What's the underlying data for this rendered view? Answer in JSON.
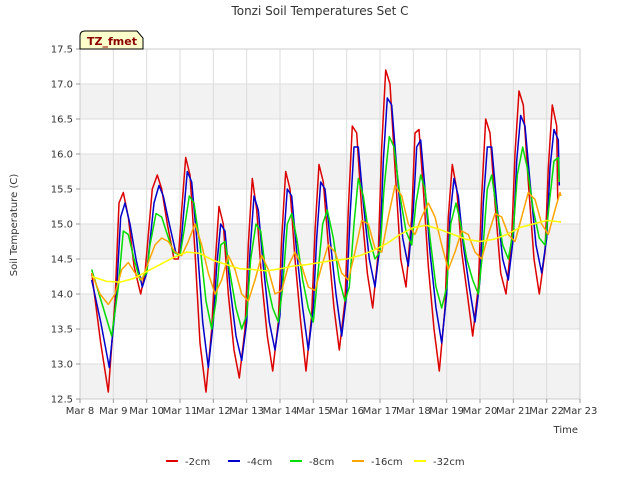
{
  "chart_data": {
    "type": "line",
    "title": "Tonzi Soil Temperatures Set C",
    "xlabel": "Time",
    "ylabel": "Soil Temperature (C)",
    "site_label": "TZ_fmet",
    "xlim": [
      8,
      23
    ],
    "ylim": [
      12.5,
      17.5
    ],
    "x_ticks": [
      8,
      9,
      10,
      11,
      12,
      13,
      14,
      15,
      16,
      17,
      18,
      19,
      20,
      21,
      22,
      23
    ],
    "x_tick_labels": [
      "Mar 8",
      "Mar 9",
      "Mar 10",
      "Mar 11",
      "Mar 12",
      "Mar 13",
      "Mar 14",
      "Mar 15",
      "Mar 16",
      "Mar 17",
      "Mar 18",
      "Mar 19",
      "Mar 20",
      "Mar 21",
      "Mar 22",
      "Mar 23"
    ],
    "y_ticks": [
      12.5,
      13.0,
      13.5,
      14.0,
      14.5,
      15.0,
      15.5,
      16.0,
      16.5,
      17.0,
      17.5
    ],
    "y_tick_labels": [
      "12.5",
      "13.0",
      "13.5",
      "14.0",
      "14.5",
      "15.0",
      "15.5",
      "16.0",
      "16.5",
      "17.0",
      "17.5"
    ],
    "grid": true,
    "legend_position": "bottom",
    "series": [
      {
        "name": "-2cm",
        "color": "#dd0000",
        "x": [
          8.35,
          8.62,
          8.85,
          9.05,
          9.17,
          9.3,
          9.45,
          9.62,
          9.82,
          9.95,
          10.17,
          10.32,
          10.45,
          10.62,
          10.82,
          10.95,
          11.05,
          11.17,
          11.3,
          11.45,
          11.6,
          11.78,
          11.95,
          12.05,
          12.17,
          12.3,
          12.45,
          12.62,
          12.78,
          12.95,
          13.05,
          13.17,
          13.3,
          13.45,
          13.62,
          13.78,
          13.95,
          14.05,
          14.17,
          14.3,
          14.45,
          14.62,
          14.78,
          14.95,
          15.05,
          15.17,
          15.3,
          15.45,
          15.62,
          15.78,
          15.95,
          16.05,
          16.17,
          16.3,
          16.45,
          16.62,
          16.78,
          16.95,
          17.05,
          17.17,
          17.3,
          17.45,
          17.62,
          17.78,
          17.95,
          18.05,
          18.17,
          18.3,
          18.45,
          18.62,
          18.78,
          18.95,
          19.05,
          19.17,
          19.3,
          19.45,
          19.62,
          19.78,
          19.95,
          20.05,
          20.17,
          20.3,
          20.45,
          20.62,
          20.78,
          20.95,
          21.05,
          21.17,
          21.3,
          21.45,
          21.62,
          21.78,
          21.95,
          22.05,
          22.17,
          22.3
        ],
        "y": [
          14.3,
          13.3,
          12.6,
          13.9,
          15.3,
          15.45,
          15.1,
          14.4,
          14.0,
          14.3,
          15.5,
          15.7,
          15.5,
          15.0,
          14.5,
          14.5,
          15.2,
          15.95,
          15.7,
          14.6,
          13.3,
          12.6,
          13.5,
          14.4,
          15.25,
          15.0,
          14.0,
          13.2,
          12.8,
          13.5,
          14.7,
          15.65,
          15.2,
          14.2,
          13.4,
          12.9,
          13.6,
          14.8,
          15.75,
          15.5,
          14.5,
          13.6,
          12.9,
          13.7,
          14.9,
          15.85,
          15.6,
          14.7,
          13.8,
          13.2,
          13.9,
          15.2,
          16.4,
          16.3,
          15.2,
          14.3,
          13.8,
          14.6,
          16.1,
          17.2,
          17.0,
          15.8,
          14.5,
          14.1,
          15.1,
          16.3,
          16.35,
          15.5,
          14.4,
          13.5,
          12.9,
          13.8,
          15.1,
          15.85,
          15.5,
          14.6,
          14.0,
          13.4,
          14.1,
          15.4,
          16.5,
          16.3,
          15.3,
          14.3,
          14.0,
          14.8,
          16.0,
          16.9,
          16.7,
          15.6,
          14.5,
          14.0,
          14.6,
          15.8,
          16.7,
          16.4
        ],
        "y_end": 15.35
      },
      {
        "name": "-4cm",
        "color": "#0000cc",
        "x": [
          8.35,
          8.62,
          8.88,
          9.08,
          9.22,
          9.35,
          9.5,
          9.68,
          9.87,
          10.0,
          10.22,
          10.37,
          10.5,
          10.68,
          10.87,
          11.0,
          11.1,
          11.22,
          11.35,
          11.5,
          11.68,
          11.85,
          12.0,
          12.1,
          12.22,
          12.35,
          12.5,
          12.68,
          12.85,
          13.0,
          13.1,
          13.22,
          13.35,
          13.5,
          13.68,
          13.85,
          14.0,
          14.1,
          14.22,
          14.35,
          14.5,
          14.68,
          14.85,
          15.0,
          15.1,
          15.22,
          15.35,
          15.5,
          15.68,
          15.85,
          16.0,
          16.1,
          16.22,
          16.35,
          16.5,
          16.68,
          16.85,
          17.0,
          17.1,
          17.22,
          17.35,
          17.5,
          17.68,
          17.85,
          18.0,
          18.1,
          18.22,
          18.35,
          18.5,
          18.68,
          18.85,
          19.0,
          19.1,
          19.22,
          19.35,
          19.5,
          19.68,
          19.85,
          20.0,
          20.1,
          20.22,
          20.35,
          20.5,
          20.68,
          20.85,
          21.0,
          21.1,
          21.22,
          21.35,
          21.5,
          21.68,
          21.85,
          22.0,
          22.1,
          22.22,
          22.35
        ],
        "y": [
          14.2,
          13.6,
          12.95,
          13.9,
          15.1,
          15.3,
          15.0,
          14.5,
          14.1,
          14.3,
          15.3,
          15.55,
          15.4,
          15.0,
          14.6,
          14.55,
          15.1,
          15.75,
          15.6,
          14.8,
          13.6,
          12.95,
          13.6,
          14.4,
          15.0,
          14.9,
          14.1,
          13.4,
          13.05,
          13.6,
          14.6,
          15.4,
          15.2,
          14.4,
          13.6,
          13.2,
          13.7,
          14.7,
          15.5,
          15.4,
          14.6,
          13.8,
          13.2,
          13.8,
          14.8,
          15.6,
          15.5,
          14.8,
          14.0,
          13.4,
          14.0,
          15.1,
          16.1,
          16.1,
          15.3,
          14.5,
          14.1,
          14.7,
          15.9,
          16.8,
          16.7,
          15.8,
          14.8,
          14.4,
          15.2,
          16.1,
          16.2,
          15.5,
          14.6,
          13.8,
          13.3,
          14.0,
          15.1,
          15.65,
          15.4,
          14.7,
          14.1,
          13.6,
          14.2,
          15.3,
          16.1,
          16.1,
          15.3,
          14.5,
          14.2,
          14.8,
          15.9,
          16.55,
          16.4,
          15.6,
          14.7,
          14.3,
          14.8,
          15.8,
          16.35,
          16.2
        ],
        "y_end": 15.55
      },
      {
        "name": "-8cm",
        "color": "#00dd00",
        "x": [
          8.35,
          8.7,
          8.95,
          9.15,
          9.3,
          9.45,
          9.62,
          9.8,
          10.0,
          10.1,
          10.28,
          10.45,
          10.62,
          10.8,
          11.0,
          11.12,
          11.28,
          11.42,
          11.6,
          11.78,
          11.95,
          12.08,
          12.22,
          12.35,
          12.5,
          12.68,
          12.85,
          13.0,
          13.12,
          13.28,
          13.42,
          13.6,
          13.78,
          13.95,
          14.08,
          14.22,
          14.35,
          14.5,
          14.68,
          14.85,
          15.0,
          15.12,
          15.28,
          15.42,
          15.6,
          15.78,
          15.95,
          16.08,
          16.22,
          16.35,
          16.5,
          16.68,
          16.85,
          17.0,
          17.12,
          17.28,
          17.42,
          17.6,
          17.78,
          17.95,
          18.08,
          18.22,
          18.35,
          18.5,
          18.68,
          18.85,
          19.0,
          19.12,
          19.28,
          19.42,
          19.6,
          19.78,
          19.95,
          20.08,
          20.22,
          20.35,
          20.5,
          20.68,
          20.85,
          21.0,
          21.12,
          21.28,
          21.42,
          21.6,
          21.78,
          21.95,
          22.08,
          22.22,
          22.35
        ],
        "y": [
          14.35,
          13.8,
          13.4,
          14.1,
          14.9,
          14.85,
          14.5,
          14.2,
          14.3,
          14.7,
          15.15,
          15.1,
          14.85,
          14.6,
          14.55,
          14.9,
          15.4,
          15.3,
          14.7,
          13.9,
          13.5,
          13.9,
          14.7,
          14.75,
          14.3,
          13.8,
          13.5,
          13.7,
          14.5,
          15.0,
          14.9,
          14.2,
          13.8,
          13.6,
          14.1,
          15.0,
          15.15,
          14.8,
          14.2,
          13.8,
          13.6,
          14.2,
          15.0,
          15.2,
          14.8,
          14.2,
          13.9,
          14.1,
          15.0,
          15.65,
          15.4,
          14.8,
          14.5,
          14.6,
          15.5,
          16.25,
          16.1,
          15.4,
          14.9,
          14.7,
          15.3,
          15.7,
          15.5,
          14.8,
          14.1,
          13.8,
          14.1,
          15.0,
          15.3,
          15.0,
          14.5,
          14.2,
          14.0,
          14.6,
          15.5,
          15.7,
          15.2,
          14.7,
          14.5,
          14.9,
          15.7,
          16.1,
          15.8,
          15.2,
          14.8,
          14.7,
          15.3,
          15.9,
          15.95
        ],
        "y_end": 15.6
      },
      {
        "name": "-16cm",
        "color": "#ffa500",
        "x": [
          8.35,
          8.6,
          8.85,
          9.05,
          9.25,
          9.45,
          9.65,
          9.85,
          10.05,
          10.25,
          10.45,
          10.65,
          10.85,
          11.05,
          11.25,
          11.45,
          11.65,
          11.85,
          12.05,
          12.25,
          12.45,
          12.65,
          12.85,
          13.05,
          13.25,
          13.45,
          13.65,
          13.85,
          14.05,
          14.25,
          14.45,
          14.65,
          14.85,
          15.05,
          15.25,
          15.45,
          15.65,
          15.85,
          16.05,
          16.25,
          16.45,
          16.65,
          16.85,
          17.05,
          17.25,
          17.45,
          17.65,
          17.85,
          18.05,
          18.25,
          18.45,
          18.65,
          18.85,
          19.05,
          19.25,
          19.45,
          19.65,
          19.85,
          20.05,
          20.25,
          20.45,
          20.65,
          20.85,
          21.05,
          21.25,
          21.45,
          21.65,
          21.85,
          22.05,
          22.25,
          22.4
        ],
        "y": [
          14.3,
          14.0,
          13.85,
          14.0,
          14.35,
          14.45,
          14.3,
          14.2,
          14.45,
          14.7,
          14.8,
          14.75,
          14.6,
          14.55,
          14.75,
          15.0,
          14.7,
          14.3,
          14.0,
          14.2,
          14.55,
          14.35,
          14.0,
          13.9,
          14.2,
          14.55,
          14.35,
          14.0,
          14.05,
          14.4,
          14.6,
          14.4,
          14.1,
          14.05,
          14.4,
          14.7,
          14.6,
          14.3,
          14.2,
          14.6,
          15.05,
          15.0,
          14.65,
          14.6,
          15.1,
          15.55,
          15.4,
          15.0,
          14.85,
          15.1,
          15.3,
          15.1,
          14.7,
          14.35,
          14.6,
          14.9,
          14.85,
          14.6,
          14.5,
          14.85,
          15.15,
          15.1,
          14.85,
          14.75,
          15.1,
          15.45,
          15.35,
          15.0,
          14.85,
          15.2,
          15.45
        ],
        "y_end": 15.4
      },
      {
        "name": "-32cm",
        "color": "#ffff00",
        "x": [
          8.35,
          8.8,
          9.2,
          9.6,
          10.0,
          10.4,
          10.8,
          11.2,
          11.6,
          12.0,
          12.4,
          12.8,
          13.2,
          13.6,
          14.0,
          14.4,
          14.8,
          15.2,
          15.6,
          16.0,
          16.4,
          16.8,
          17.2,
          17.6,
          18.0,
          18.4,
          18.8,
          19.2,
          19.6,
          20.0,
          20.4,
          20.8,
          21.2,
          21.6,
          22.0,
          22.4
        ],
        "y": [
          14.25,
          14.18,
          14.17,
          14.22,
          14.32,
          14.42,
          14.52,
          14.6,
          14.58,
          14.48,
          14.42,
          14.36,
          14.35,
          14.33,
          14.36,
          14.4,
          14.42,
          14.45,
          14.48,
          14.5,
          14.55,
          14.62,
          14.72,
          14.85,
          14.95,
          14.98,
          14.92,
          14.85,
          14.78,
          14.75,
          14.78,
          14.85,
          14.95,
          15.0,
          15.05,
          15.03
        ],
        "y_end": 15.03
      }
    ]
  }
}
